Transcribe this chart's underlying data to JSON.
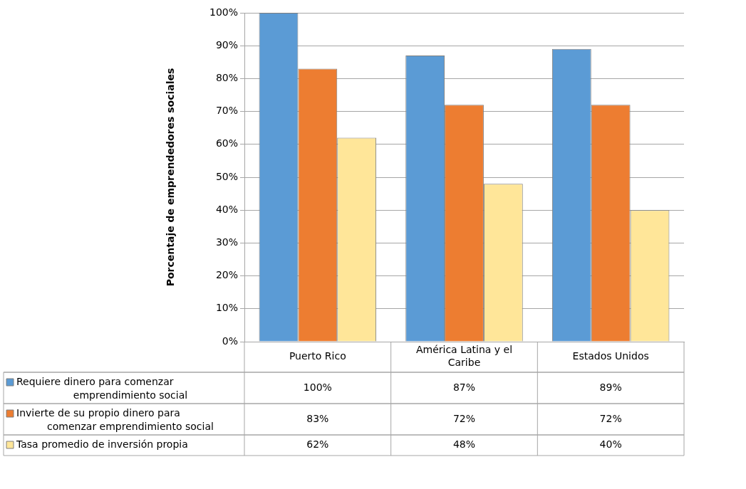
{
  "chart_data": {
    "type": "bar",
    "ylabel": "Porcentaje de emprendedores sociales",
    "categories": [
      "Puerto Rico",
      "América Latina y el Caribe",
      "Estados Unidos"
    ],
    "series": [
      {
        "name": "Requiere dinero para comenzar emprendimiento social",
        "color": "#5b9bd5",
        "values": [
          100,
          87,
          89
        ],
        "value_labels": [
          "100%",
          "87%",
          "89%"
        ]
      },
      {
        "name": "Invierte de su propio dinero para comenzar emprendimiento social",
        "color": "#ed7d31",
        "values": [
          83,
          72,
          72
        ],
        "value_labels": [
          "83%",
          "72%",
          "72%"
        ]
      },
      {
        "name": "Tasa promedio de inversión propia",
        "color": "#ffe699",
        "values": [
          62,
          48,
          40
        ],
        "value_labels": [
          "62%",
          "48%",
          "40%"
        ]
      }
    ],
    "ylim": [
      0,
      100
    ],
    "yticks": [
      {
        "value": 0,
        "label": "0%"
      },
      {
        "value": 10,
        "label": "10%"
      },
      {
        "value": 20,
        "label": "20%"
      },
      {
        "value": 30,
        "label": "30%"
      },
      {
        "value": 40,
        "label": "40%"
      },
      {
        "value": 50,
        "label": "50%"
      },
      {
        "value": 60,
        "label": "60%"
      },
      {
        "value": 70,
        "label": "70%"
      },
      {
        "value": 80,
        "label": "80%"
      },
      {
        "value": 90,
        "label": "90%"
      },
      {
        "value": 100,
        "label": "100%"
      }
    ],
    "grid": "y",
    "legend": "bottom"
  }
}
